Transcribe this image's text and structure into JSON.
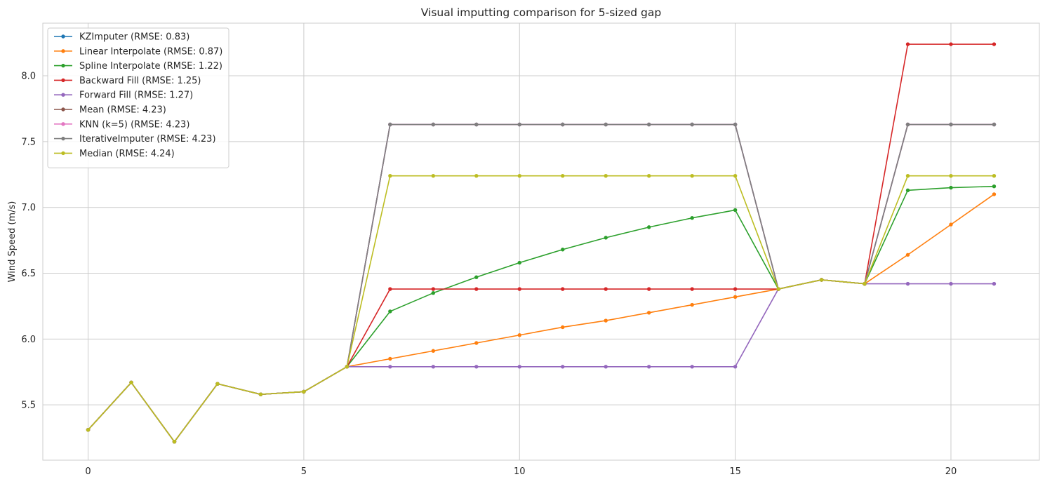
{
  "chart_data": {
    "type": "line",
    "title": "Visual imputting comparison for 5-sized gap",
    "xlabel": "",
    "ylabel": "Wind Speed (m/s)",
    "xlim": [
      -1.05,
      22.05
    ],
    "ylim": [
      5.08,
      8.4
    ],
    "xticks": [
      0,
      5,
      10,
      15,
      20
    ],
    "yticks": [
      5.5,
      6.0,
      6.5,
      7.0,
      7.5,
      8.0
    ],
    "ytick_labels": [
      "5.5",
      "6.0",
      "6.5",
      "7.0",
      "7.5",
      "8.0"
    ],
    "grid": true,
    "legend_position": "top-left",
    "x": [
      0,
      1,
      2,
      3,
      4,
      5,
      6,
      7,
      8,
      9,
      10,
      11,
      12,
      13,
      14,
      15,
      16,
      17,
      18,
      19,
      20,
      21
    ],
    "series": [
      {
        "name": "KZImputer (RMSE: 0.83)",
        "color": "#1f77b4",
        "values": [
          5.31,
          5.67,
          5.22,
          5.66,
          5.58,
          5.6,
          5.79,
          7.63,
          7.63,
          7.63,
          7.63,
          7.63,
          7.63,
          7.63,
          7.63,
          7.63,
          6.38,
          6.45,
          6.42,
          7.63,
          7.63,
          7.63
        ]
      },
      {
        "name": "Linear Interpolate (RMSE: 0.87)",
        "color": "#ff7f0e",
        "values": [
          5.31,
          5.67,
          5.22,
          5.66,
          5.58,
          5.6,
          5.79,
          5.85,
          5.91,
          5.97,
          6.03,
          6.09,
          6.14,
          6.2,
          6.26,
          6.32,
          6.38,
          6.45,
          6.42,
          6.64,
          6.87,
          7.1
        ]
      },
      {
        "name": "Spline Interpolate (RMSE: 1.22)",
        "color": "#2ca02c",
        "values": [
          5.31,
          5.67,
          5.22,
          5.66,
          5.58,
          5.6,
          5.79,
          6.21,
          6.35,
          6.47,
          6.58,
          6.68,
          6.77,
          6.85,
          6.92,
          6.98,
          6.38,
          6.45,
          6.42,
          7.13,
          7.15,
          7.16
        ]
      },
      {
        "name": "Backward Fill (RMSE: 1.25)",
        "color": "#d62728",
        "values": [
          5.31,
          5.67,
          5.22,
          5.66,
          5.58,
          5.6,
          5.79,
          6.38,
          6.38,
          6.38,
          6.38,
          6.38,
          6.38,
          6.38,
          6.38,
          6.38,
          6.38,
          6.45,
          6.42,
          8.24,
          8.24,
          8.24
        ]
      },
      {
        "name": "Forward Fill (RMSE: 1.27)",
        "color": "#9467bd",
        "values": [
          5.31,
          5.67,
          5.22,
          5.66,
          5.58,
          5.6,
          5.79,
          5.79,
          5.79,
          5.79,
          5.79,
          5.79,
          5.79,
          5.79,
          5.79,
          5.79,
          6.38,
          6.45,
          6.42,
          6.42,
          6.42,
          6.42
        ]
      },
      {
        "name": "Mean (RMSE: 4.23)",
        "color": "#8c564b",
        "values": [
          5.31,
          5.67,
          5.22,
          5.66,
          5.58,
          5.6,
          5.79,
          7.63,
          7.63,
          7.63,
          7.63,
          7.63,
          7.63,
          7.63,
          7.63,
          7.63,
          6.38,
          6.45,
          6.42,
          7.63,
          7.63,
          7.63
        ]
      },
      {
        "name": "KNN (k=5) (RMSE: 4.23)",
        "color": "#e377c2",
        "values": [
          5.31,
          5.67,
          5.22,
          5.66,
          5.58,
          5.6,
          5.79,
          7.63,
          7.63,
          7.63,
          7.63,
          7.63,
          7.63,
          7.63,
          7.63,
          7.63,
          6.38,
          6.45,
          6.42,
          7.63,
          7.63,
          7.63
        ]
      },
      {
        "name": "IterativeImputer (RMSE: 4.23)",
        "color": "#7f7f7f",
        "values": [
          5.31,
          5.67,
          5.22,
          5.66,
          5.58,
          5.6,
          5.79,
          7.63,
          7.63,
          7.63,
          7.63,
          7.63,
          7.63,
          7.63,
          7.63,
          7.63,
          6.38,
          6.45,
          6.42,
          7.63,
          7.63,
          7.63
        ]
      },
      {
        "name": "Median (RMSE: 4.24)",
        "color": "#bcbd22",
        "values": [
          5.31,
          5.67,
          5.22,
          5.66,
          5.58,
          5.6,
          5.79,
          7.24,
          7.24,
          7.24,
          7.24,
          7.24,
          7.24,
          7.24,
          7.24,
          7.24,
          6.38,
          6.45,
          6.42,
          7.24,
          7.24,
          7.24
        ]
      }
    ]
  }
}
